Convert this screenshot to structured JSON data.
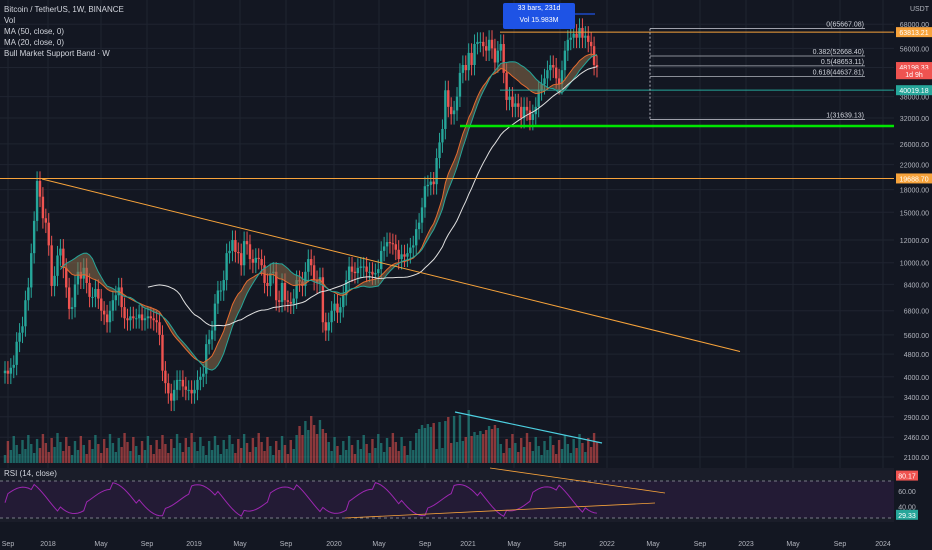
{
  "legend": {
    "symbol": "Bitcoin / TetherUS, 1W, BINANCE",
    "vol": "Vol",
    "ma50": "MA (50, close, 0)",
    "ma20": "MA (20, close, 0)",
    "bmsb": "Bull Market Support Band · W"
  },
  "rsi_label": "RSI (14, close)",
  "measure": {
    "bars": "33 bars, 231d",
    "vol": "Vol 15.983M"
  },
  "colors": {
    "bg": "#131722",
    "up": "#26a69a",
    "down": "#ef5350",
    "grid": "#1f2430",
    "orange": "#f7a33b",
    "green_line": "#00e600",
    "rsi": "#9c27b0",
    "ma50": "#e0e0e0",
    "band": "#8d6e4b"
  },
  "chart_data": {
    "type": "candlestick",
    "price_axis_labels": [
      "68000.00",
      "56000.00",
      "48000.00",
      "38000.00",
      "32000.00",
      "26000.00",
      "22000.00",
      "18000.00",
      "15000.00",
      "12000.00",
      "10000.00",
      "8400.00",
      "6800.00",
      "5600.00",
      "4800.00",
      "4000.00",
      "3400.00",
      "2900.00",
      "2460.00",
      "2100.00"
    ],
    "price_axis_ticks": [
      68000,
      56000,
      48000,
      38000,
      32000,
      26000,
      22000,
      18000,
      15000,
      12000,
      10000,
      8400,
      6800,
      5600,
      4800,
      4000,
      3400,
      2900,
      2460,
      2100
    ],
    "ylim": [
      2000,
      80000
    ],
    "axis_currency": "USDT",
    "time_labels": [
      "Sep",
      "2018",
      "May",
      "Sep",
      "2019",
      "May",
      "Sep",
      "2020",
      "May",
      "Sep",
      "2021",
      "May",
      "Sep",
      "2022",
      "May",
      "Sep",
      "2023",
      "May",
      "Sep",
      "2024"
    ],
    "price_tags": [
      {
        "text": "63813.21",
        "price": 63813.21,
        "color": "#f7a33b"
      },
      {
        "text": "48198.33",
        "price": 48198.33,
        "color": "#ef5350"
      },
      {
        "text": "1d 9h",
        "price": 45500,
        "color": "#ef5350"
      },
      {
        "text": "40019.18",
        "price": 40019.18,
        "color": "#26a69a"
      },
      {
        "text": "19688.70",
        "price": 19688.7,
        "color": "#f7a33b"
      }
    ],
    "fib_levels": [
      {
        "label": "0(65667.08)",
        "price": 65667.08
      },
      {
        "label": "0.382(52668.40)",
        "price": 52668.4
      },
      {
        "label": "0.5(48653.11)",
        "price": 48653.11
      },
      {
        "label": "0.618(44637.81)",
        "price": 44637.81
      },
      {
        "label": "1(31639.13)",
        "price": 31639.13
      }
    ],
    "horizontal_levels": [
      {
        "price": 63813.21,
        "color": "#f7a33b"
      },
      {
        "price": 40019.18,
        "color": "#26a69a"
      },
      {
        "price": 30000,
        "color": "#00e600"
      },
      {
        "price": 19688.7,
        "color": "#f7a33b"
      }
    ],
    "trendlines": [
      {
        "from": [
          "2017-12-17",
          19600
        ],
        "to": [
          "2022-04-10",
          4900
        ]
      },
      {
        "from": [
          "2021-01-25",
          3380
        ],
        "to": [
          "2021-12-05",
          2540
        ],
        "pane": "volume"
      }
    ],
    "series_weekly_close": [
      [
        4200,
        4100,
        4300,
        4400,
        5300,
        5700,
        6000,
        7400,
        8200,
        10800,
        14000,
        19300,
        17000,
        14300,
        13800,
        11500,
        8300,
        9000,
        10600,
        11200,
        9600,
        8200,
        6900,
        7000,
        8400,
        9300,
        8800,
        9600,
        8500,
        7600,
        7600,
        8100,
        7500,
        6800,
        6600,
        6200,
        6800,
        7400,
        7700,
        8200,
        7000,
        6400,
        6300,
        6500,
        6400,
        6400,
        6600,
        6300,
        6400,
        6500,
        6400,
        6300,
        6200,
        5600,
        4200,
        3800,
        3500,
        3300,
        3600,
        3900,
        3900,
        3700,
        3600,
        3600,
        3500,
        3600,
        3900,
        4000,
        4100,
        5200,
        5400,
        5800,
        7200,
        8000,
        8000,
        8700,
        10800,
        11000,
        12000,
        10900,
        10800,
        9800,
        11900,
        11600,
        10300,
        10000,
        10400,
        10300,
        9800,
        8500,
        8300,
        9200,
        9300,
        7400,
        7300,
        8500,
        7400,
        7300,
        7200,
        7500,
        8700,
        8600,
        8300,
        9300,
        10300,
        9800,
        8700,
        8500,
        8900,
        6200,
        5800,
        6200,
        6800,
        7200,
        6700,
        7000,
        7700,
        8700,
        9700,
        9300,
        9200,
        9600,
        9700,
        9700,
        9300,
        9300,
        9100,
        9200,
        9500,
        11000,
        11400,
        11800,
        11700,
        11600,
        11100,
        10300,
        10700,
        10500,
        10800,
        11300,
        11500,
        13100,
        13800,
        15600,
        18500,
        18700,
        19200,
        18800,
        23200,
        26300,
        29300,
        40000,
        35000,
        33000,
        34000,
        38000,
        46000,
        49000,
        47000,
        54000,
        49000,
        58000,
        59000,
        59000,
        57000,
        55000,
        60000,
        56000,
        50000,
        55000,
        58000,
        46000,
        37000,
        38000,
        35000,
        36000,
        35000,
        32000,
        35000,
        34000,
        31500,
        33000,
        35000,
        40000,
        42000,
        44000,
        47000,
        49000,
        48000,
        44000,
        42000,
        47000,
        55000,
        60000,
        61000,
        63000,
        61000,
        66000,
        61000,
        62000,
        59000,
        57000,
        49000,
        48200
      ]
    ],
    "rsi": {
      "labels": [
        "80.17",
        "60.00",
        "40.00",
        "29.33"
      ],
      "overbought": 70,
      "oversold": 30
    }
  }
}
